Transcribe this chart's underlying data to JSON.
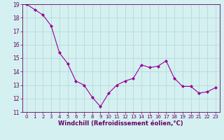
{
  "x": [
    0,
    1,
    2,
    3,
    4,
    5,
    6,
    7,
    8,
    9,
    10,
    11,
    12,
    13,
    14,
    15,
    16,
    17,
    18,
    19,
    20,
    21,
    22,
    23
  ],
  "y": [
    19.0,
    18.6,
    18.2,
    17.4,
    15.4,
    14.6,
    13.3,
    13.0,
    12.1,
    11.4,
    12.4,
    13.0,
    13.3,
    13.5,
    14.5,
    14.3,
    14.4,
    14.8,
    13.5,
    12.9,
    12.9,
    12.4,
    12.5,
    12.8
  ],
  "line_color": "#990099",
  "marker": "D",
  "marker_size": 2,
  "bg_color": "#d4f0f0",
  "grid_color": "#b8dada",
  "axis_label_color": "#660066",
  "tick_color": "#660066",
  "xlabel": "Windchill (Refroidissement éolien,°C)",
  "ylim": [
    11,
    19
  ],
  "xlim": [
    -0.5,
    23.5
  ],
  "yticks": [
    11,
    12,
    13,
    14,
    15,
    16,
    17,
    18,
    19
  ],
  "xticks": [
    0,
    1,
    2,
    3,
    4,
    5,
    6,
    7,
    8,
    9,
    10,
    11,
    12,
    13,
    14,
    15,
    16,
    17,
    18,
    19,
    20,
    21,
    22,
    23
  ]
}
